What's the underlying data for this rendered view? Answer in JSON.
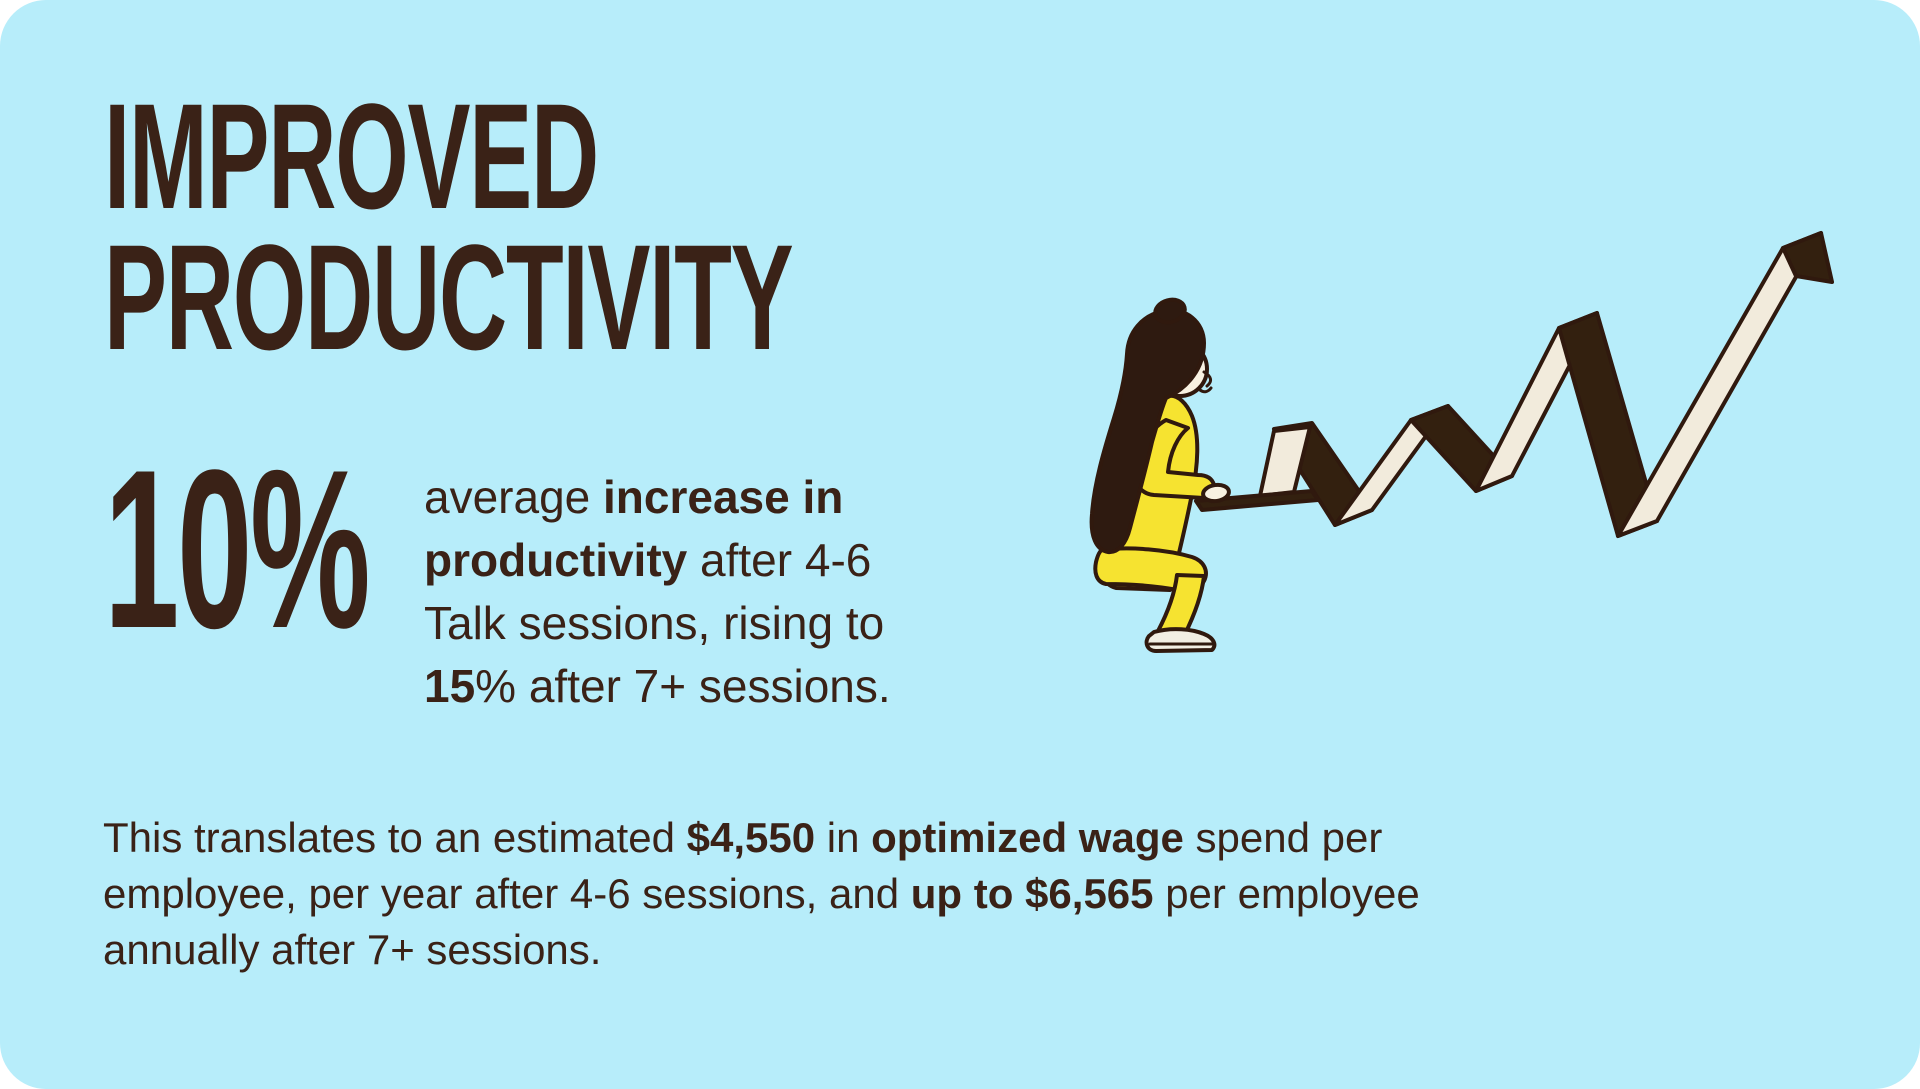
{
  "theme": {
    "bg_blue": "#b7edfa",
    "ink": "#3a2217",
    "page_bg": "#ffffff"
  },
  "heading": {
    "line1": "IMPROVED",
    "line2": "PRODUCTIVITY"
  },
  "stat": {
    "value": "10%",
    "description_lines": [
      [
        {
          "text": "average ",
          "bold": false
        },
        {
          "text": "increase in",
          "bold": true
        }
      ],
      [
        {
          "text": "productivity",
          "bold": true
        },
        {
          "text": " after 4-6",
          "bold": false
        }
      ],
      [
        {
          "text": "Talk sessions, rising to",
          "bold": false
        }
      ],
      [
        {
          "text": "15",
          "bold": true
        },
        {
          "text": "% after 7+ sessions.",
          "bold": false
        }
      ]
    ]
  },
  "paragraph": {
    "lines": [
      [
        {
          "text": "This translates to an estimated ",
          "bold": false
        },
        {
          "text": "$4,550",
          "bold": true
        },
        {
          "text": " in ",
          "bold": false
        },
        {
          "text": "optimized wage",
          "bold": true
        },
        {
          "text": " spend per",
          "bold": false
        }
      ],
      [
        {
          "text": "employee, per year after 4-6 sessions, and ",
          "bold": false
        },
        {
          "text": "up to $6,565",
          "bold": true
        },
        {
          "text": " per employee",
          "bold": false
        }
      ],
      [
        {
          "text": "annually after 7+ sessions.",
          "bold": false
        }
      ]
    ]
  },
  "illustration": {
    "name": "woman-typing-on-laptop-with-rising-zigzag-ribbon",
    "colors": {
      "outline": "#30190e",
      "ribbon_light": "#f2ebdc",
      "ribbon_dark": "#33200f",
      "outfit_yellow": "#f6e330",
      "skin": "#f8f1e1",
      "hair": "#2e1a10",
      "shoe": "#f2eee3",
      "laptop_screen": "#f2ebdc",
      "laptop_base": "#33200f"
    }
  }
}
